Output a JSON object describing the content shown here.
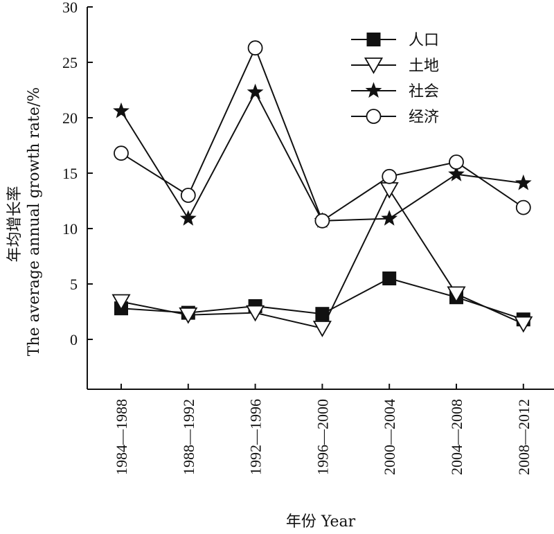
{
  "chart_data": {
    "type": "line",
    "categories": [
      "1984—1988",
      "1988—1992",
      "1992—1996",
      "1996—2000",
      "2000—2004",
      "2004—2008",
      "2008—2012"
    ],
    "xlabel": "年份 Year",
    "ylabel_cn": "年均增长率",
    "ylabel_en": "The average annual growth rate/%",
    "ylim": [
      -4.5,
      30
    ],
    "yticks": [
      0,
      5,
      10,
      15,
      20,
      25,
      30
    ],
    "grid": false,
    "legend_position": "top-right",
    "series": [
      {
        "name": "人口",
        "marker": "filled-square",
        "values": [
          2.8,
          2.4,
          3.0,
          2.3,
          5.5,
          3.8,
          1.8
        ]
      },
      {
        "name": "土地",
        "marker": "open-triangle-down",
        "values": [
          3.4,
          2.2,
          2.4,
          1.0,
          13.5,
          4.1,
          1.4
        ]
      },
      {
        "name": "社会",
        "marker": "filled-star",
        "values": [
          20.6,
          10.9,
          22.3,
          10.7,
          10.9,
          14.9,
          14.1
        ]
      },
      {
        "name": "经济",
        "marker": "open-circle",
        "values": [
          16.8,
          13.0,
          26.3,
          10.7,
          14.7,
          16.0,
          11.9
        ]
      }
    ]
  },
  "colors": {
    "ink": "#111111",
    "background": "#ffffff"
  }
}
